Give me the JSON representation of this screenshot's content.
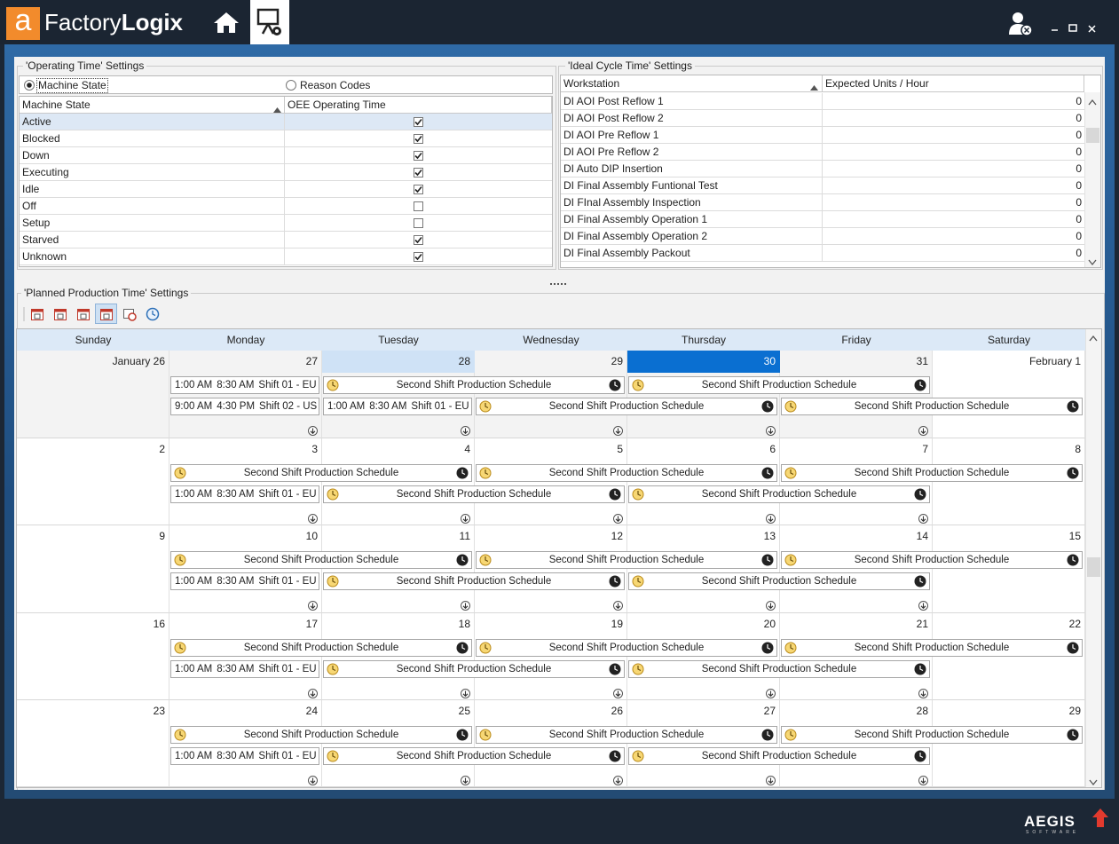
{
  "header": {
    "logo_mark": "a",
    "brand_first": "Factory",
    "brand_second": "Logix"
  },
  "operating_time": {
    "title": "'Operating Time' Settings",
    "modes": [
      "Machine State",
      "Reason Codes"
    ],
    "selected_mode": 0,
    "columns": [
      "Machine State",
      "OEE Operating Time"
    ],
    "highlighted_row": 0,
    "rows": [
      {
        "name": "Active",
        "checked": true
      },
      {
        "name": "Blocked",
        "checked": true
      },
      {
        "name": "Down",
        "checked": true
      },
      {
        "name": "Executing",
        "checked": true
      },
      {
        "name": "Idle",
        "checked": true
      },
      {
        "name": "Off",
        "checked": false
      },
      {
        "name": "Setup",
        "checked": false
      },
      {
        "name": "Starved",
        "checked": true
      },
      {
        "name": "Unknown",
        "checked": true
      }
    ]
  },
  "ideal_cycle_time": {
    "title": "'Ideal Cycle Time' Settings",
    "columns": [
      "Workstation",
      "Expected Units / Hour"
    ],
    "rows": [
      {
        "name": "DI AOI Post Reflow 1",
        "value": 0
      },
      {
        "name": "DI AOI Post Reflow 2",
        "value": 0
      },
      {
        "name": "DI AOI Pre Reflow 1",
        "value": 0
      },
      {
        "name": "DI AOI Pre Reflow 2",
        "value": 0
      },
      {
        "name": "DI Auto DIP Insertion",
        "value": 0
      },
      {
        "name": "DI Final Assembly Funtional Test",
        "value": 0
      },
      {
        "name": "DI FInal Assembly Inspection",
        "value": 0
      },
      {
        "name": "DI Final Assembly Operation 1",
        "value": 0
      },
      {
        "name": "DI Final Assembly Operation 2",
        "value": 0
      },
      {
        "name": "DI Final Assembly Packout",
        "value": 0
      }
    ]
  },
  "planned_production_time": {
    "title": "'Planned Production Time' Settings",
    "days": [
      "Sunday",
      "Monday",
      "Tuesday",
      "Wednesday",
      "Thursday",
      "Friday",
      "Saturday"
    ],
    "today": {
      "week": 0,
      "day": 2
    },
    "selected": {
      "week": 0,
      "day": 4
    },
    "weeks": [
      {
        "dates": [
          "January 26",
          "27",
          "28",
          "29",
          "30",
          "31",
          "February 1"
        ],
        "muted_days": [
          0,
          1,
          2,
          3,
          4,
          5
        ],
        "events": [
          {
            "lane": 0,
            "day": 1,
            "span": 1,
            "start": "1:00 AM",
            "end": "8:30 AM",
            "name": "Shift 01 - EU"
          },
          {
            "lane": 0,
            "day": 2,
            "span": 2,
            "name": "Second Shift Production Schedule"
          },
          {
            "lane": 0,
            "day": 4,
            "span": 2,
            "name": "Second Shift Production Schedule"
          },
          {
            "lane": 1,
            "day": 1,
            "span": 1,
            "start": "9:00 AM",
            "end": "4:30 PM",
            "name": "Shift 02 - US"
          },
          {
            "lane": 1,
            "day": 2,
            "span": 1,
            "start": "1:00 AM",
            "end": "8:30 AM",
            "name": "Shift 01 - EU"
          },
          {
            "lane": 1,
            "day": 3,
            "span": 2,
            "name": "Second Shift Production Schedule"
          },
          {
            "lane": 1,
            "day": 5,
            "span": 2,
            "name": "Second Shift Production Schedule"
          }
        ]
      },
      {
        "dates": [
          "2",
          "3",
          "4",
          "5",
          "6",
          "7",
          "8"
        ],
        "events": [
          {
            "lane": 0,
            "day": 1,
            "span": 2,
            "name": "Second Shift Production Schedule"
          },
          {
            "lane": 0,
            "day": 3,
            "span": 2,
            "name": "Second Shift Production Schedule"
          },
          {
            "lane": 0,
            "day": 5,
            "span": 2,
            "name": "Second Shift Production Schedule"
          },
          {
            "lane": 1,
            "day": 1,
            "span": 1,
            "start": "1:00 AM",
            "end": "8:30 AM",
            "name": "Shift 01 - EU"
          },
          {
            "lane": 1,
            "day": 2,
            "span": 2,
            "name": "Second Shift Production Schedule"
          },
          {
            "lane": 1,
            "day": 4,
            "span": 2,
            "name": "Second Shift Production Schedule"
          }
        ]
      },
      {
        "dates": [
          "9",
          "10",
          "11",
          "12",
          "13",
          "14",
          "15"
        ],
        "events": [
          {
            "lane": 0,
            "day": 1,
            "span": 2,
            "name": "Second Shift Production Schedule"
          },
          {
            "lane": 0,
            "day": 3,
            "span": 2,
            "name": "Second Shift Production Schedule"
          },
          {
            "lane": 0,
            "day": 5,
            "span": 2,
            "name": "Second Shift Production Schedule"
          },
          {
            "lane": 1,
            "day": 1,
            "span": 1,
            "start": "1:00 AM",
            "end": "8:30 AM",
            "name": "Shift 01 - EU"
          },
          {
            "lane": 1,
            "day": 2,
            "span": 2,
            "name": "Second Shift Production Schedule"
          },
          {
            "lane": 1,
            "day": 4,
            "span": 2,
            "name": "Second Shift Production Schedule"
          }
        ]
      },
      {
        "dates": [
          "16",
          "17",
          "18",
          "19",
          "20",
          "21",
          "22"
        ],
        "events": [
          {
            "lane": 0,
            "day": 1,
            "span": 2,
            "name": "Second Shift Production Schedule"
          },
          {
            "lane": 0,
            "day": 3,
            "span": 2,
            "name": "Second Shift Production Schedule"
          },
          {
            "lane": 0,
            "day": 5,
            "span": 2,
            "name": "Second Shift Production Schedule"
          },
          {
            "lane": 1,
            "day": 1,
            "span": 1,
            "start": "1:00 AM",
            "end": "8:30 AM",
            "name": "Shift 01 - EU"
          },
          {
            "lane": 1,
            "day": 2,
            "span": 2,
            "name": "Second Shift Production Schedule"
          },
          {
            "lane": 1,
            "day": 4,
            "span": 2,
            "name": "Second Shift Production Schedule"
          }
        ]
      },
      {
        "dates": [
          "23",
          "24",
          "25",
          "26",
          "27",
          "28",
          "29"
        ],
        "events": [
          {
            "lane": 0,
            "day": 1,
            "span": 2,
            "name": "Second Shift Production Schedule"
          },
          {
            "lane": 0,
            "day": 3,
            "span": 2,
            "name": "Second Shift Production Schedule"
          },
          {
            "lane": 0,
            "day": 5,
            "span": 2,
            "name": "Second Shift Production Schedule"
          },
          {
            "lane": 1,
            "day": 1,
            "span": 1,
            "start": "1:00 AM",
            "end": "8:30 AM",
            "name": "Shift 01 - EU"
          },
          {
            "lane": 1,
            "day": 2,
            "span": 2,
            "name": "Second Shift Production Schedule"
          },
          {
            "lane": 1,
            "day": 4,
            "span": 2,
            "name": "Second Shift Production Schedule"
          }
        ]
      }
    ]
  },
  "footer": {
    "brand": "AEGIS",
    "tagline": "SOFTWARE"
  }
}
